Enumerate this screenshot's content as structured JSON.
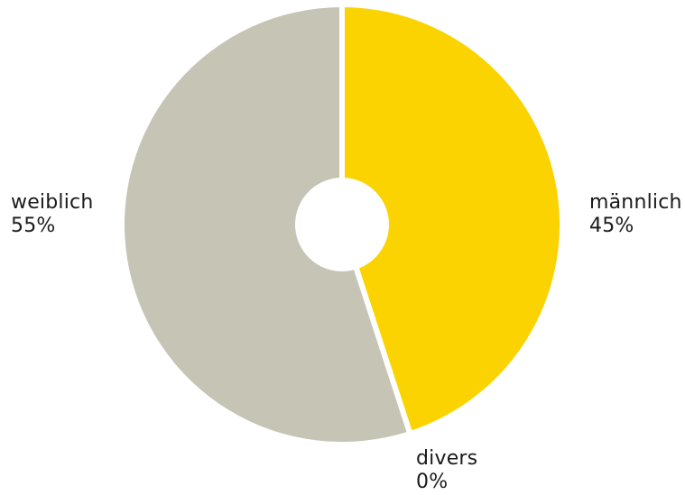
{
  "chart_data": {
    "type": "pie",
    "donut": true,
    "title": "",
    "slices": [
      {
        "name": "männlich",
        "value": 45,
        "label": "45%",
        "color": "#fbd300"
      },
      {
        "name": "divers",
        "value": 0,
        "label": "0%",
        "color": "#ffffff"
      },
      {
        "name": "weiblich",
        "value": 55,
        "label": "55%",
        "color": "#c5c4b5"
      }
    ],
    "legend": "none"
  }
}
